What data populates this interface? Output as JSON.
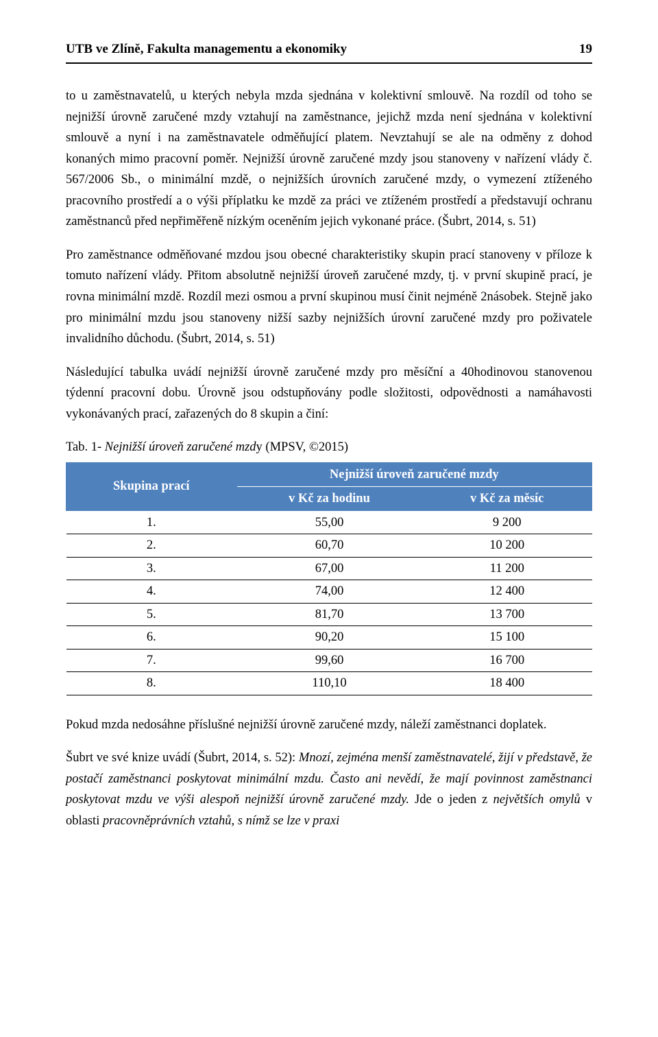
{
  "header": {
    "institution": "UTB ve Zlíně, Fakulta managementu a ekonomiky",
    "page_number": "19"
  },
  "paragraphs": {
    "p1": "to u zaměstnavatelů, u kterých nebyla mzda sjednána v kolektivní smlouvě. Na rozdíl od toho se nejnižší úrovně zaručené mzdy vztahují na zaměstnance, jejichž mzda není sjednána v kolektivní smlouvě a nyní i na zaměstnavatele odměňující platem. Nevztahují se ale na odměny z dohod konaných mimo pracovní poměr. Nejnižší úrovně zaručené mzdy jsou stanoveny v nařízení vlády č. 567/2006 Sb., o minimální mzdě, o nejnižších úrovních zaručené mzdy, o vymezení ztíženého pracovního prostředí a o výši příplatku ke mzdě za práci ve ztíženém prostředí a představují ochranu zaměstnanců před nepřiměřeně nízkým oceněním jejich vykonané práce. (Šubrt, 2014, s. 51)",
    "p2": "Pro zaměstnance odměňované mzdou jsou obecné charakteristiky skupin prací stanoveny v příloze k tomuto nařízení vlády. Přitom absolutně nejnižší úroveň zaručené mzdy, tj. v první skupině prací, je rovna minimální mzdě. Rozdíl mezi osmou a první skupinou musí činit nejméně 2násobek. Stejně jako pro minimální mzdu jsou stanoveny nižší sazby nejnižších úrovní zaručené mzdy pro poživatele invalidního důchodu. (Šubrt, 2014, s. 51)",
    "p3": "Následující tabulka uvádí nejnižší úrovně zaručené mzdy pro měsíční a 40hodinovou stanovenou týdenní pracovní dobu. Úrovně jsou odstupňovány podle složitosti, odpovědnosti a namáhavosti vykonávaných prací, zařazených do 8 skupin a činí:",
    "p4": "Pokud mzda nedosáhne příslušné nejnižší úrovně zaručené mzdy, náleží zaměstnanci doplatek.",
    "p5_plain_a": "Šubrt ve své knize uvádí (Šubrt, 2014, s. 52): ",
    "p5_italic_a": "Mnozí, zejména menší zaměstnavatelé, žijí v představě, že postačí zaměstnanci poskytovat minimální mzdu. Často ani nevědí, že mají povinnost zaměstnanci poskytovat mzdu ve výši alespoň nejnižší úrovně zaručené mzdy.",
    "p5_plain_b": " Jde o jeden z ",
    "p5_italic_b": "největších omylů",
    "p5_plain_c": " v oblasti ",
    "p5_italic_c": "pracovněprávních vztahů, s nímž se lze v praxi"
  },
  "table": {
    "caption_prefix": "Tab. 1-  ",
    "caption_italic": "Nejnižší úroveň zaručené mzd",
    "caption_suffix": "y (MPSV, ©2015)",
    "header_group": "Skupina prací",
    "header_main": "Nejnižší úroveň zaručené mzdy",
    "header_col_hour": "v Kč za hodinu",
    "header_col_month": "v Kč za měsíc",
    "header_bg": "#4f81bd",
    "header_fg": "#ffffff",
    "rows": [
      {
        "g": "1.",
        "h": "55,00",
        "m": "9 200"
      },
      {
        "g": "2.",
        "h": "60,70",
        "m": "10 200"
      },
      {
        "g": "3.",
        "h": "67,00",
        "m": "11 200"
      },
      {
        "g": "4.",
        "h": "74,00",
        "m": "12 400"
      },
      {
        "g": "5.",
        "h": "81,70",
        "m": "13 700"
      },
      {
        "g": "6.",
        "h": "90,20",
        "m": "15 100"
      },
      {
        "g": "7.",
        "h": "99,60",
        "m": "16 700"
      },
      {
        "g": "8.",
        "h": "110,10",
        "m": "18 400"
      }
    ]
  }
}
